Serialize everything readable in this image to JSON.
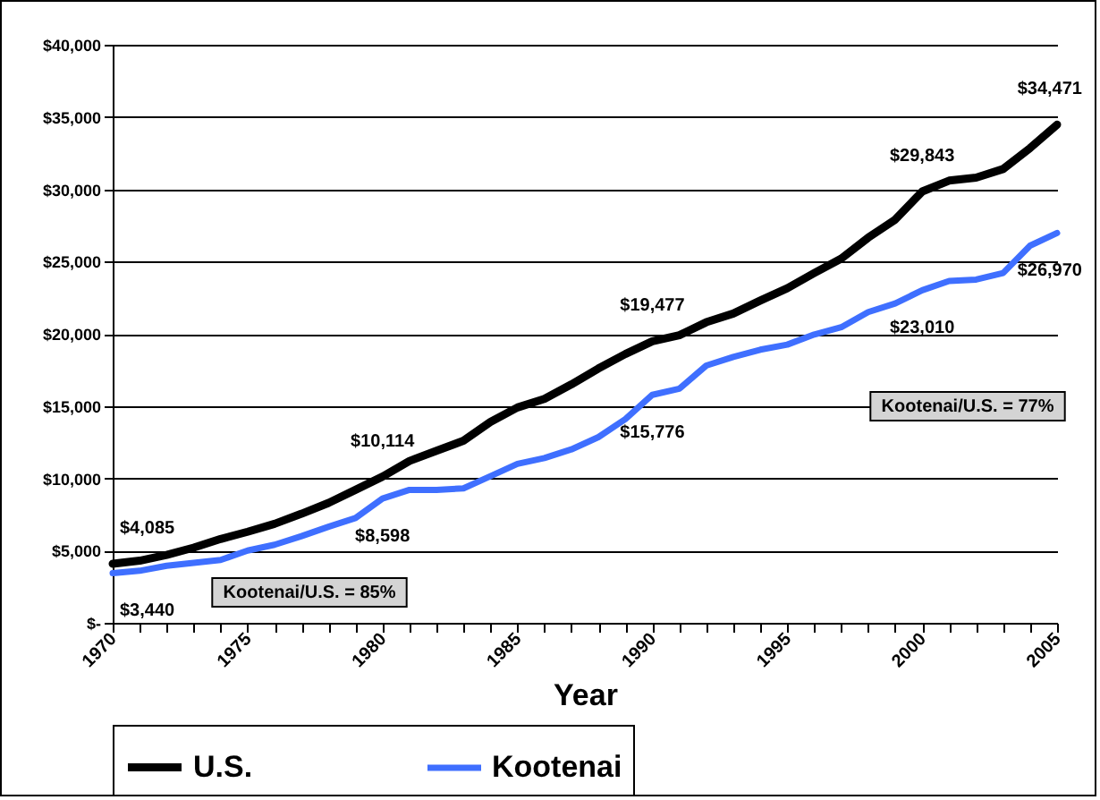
{
  "chart_data": {
    "type": "line",
    "xlabel": "Year",
    "x": [
      1970,
      1971,
      1972,
      1973,
      1974,
      1975,
      1976,
      1977,
      1978,
      1979,
      1980,
      1981,
      1982,
      1983,
      1984,
      1985,
      1986,
      1987,
      1988,
      1989,
      1990,
      1991,
      1992,
      1993,
      1994,
      1995,
      1996,
      1997,
      1998,
      1999,
      2000,
      2001,
      2002,
      2003,
      2004,
      2005
    ],
    "series": [
      {
        "name": "U.S.",
        "color": "#000000",
        "values": [
          4085,
          4300,
          4700,
          5200,
          5800,
          6300,
          6850,
          7550,
          8300,
          9200,
          10114,
          11200,
          11900,
          12600,
          13900,
          14900,
          15500,
          16500,
          17600,
          18600,
          19477,
          19900,
          20800,
          21400,
          22300,
          23150,
          24200,
          25200,
          26650,
          27900,
          29843,
          30600,
          30800,
          31400,
          32850,
          34471
        ]
      },
      {
        "name": "Kootenai",
        "color": "#3f6fff",
        "values": [
          3440,
          3600,
          3950,
          4150,
          4350,
          5000,
          5400,
          6000,
          6650,
          7250,
          8598,
          9200,
          9200,
          9300,
          10150,
          11000,
          11400,
          12000,
          12850,
          14100,
          15776,
          16200,
          17800,
          18400,
          18900,
          19250,
          19950,
          20450,
          21500,
          22100,
          23010,
          23650,
          23750,
          24200,
          26100,
          26970
        ]
      }
    ],
    "annotations": [
      {
        "text": "$4,085",
        "x": 1970,
        "y": 4085
      },
      {
        "text": "$10,114",
        "x": 1980,
        "y": 10114
      },
      {
        "text": "$19,477",
        "x": 1990,
        "y": 19477
      },
      {
        "text": "$29,843",
        "x": 2000,
        "y": 29843
      },
      {
        "text": "$34,471",
        "x": 2005,
        "y": 34471
      },
      {
        "text": "$3,440",
        "x": 1970,
        "y": 3440
      },
      {
        "text": "$8,598",
        "x": 1980,
        "y": 8598
      },
      {
        "text": "$15,776",
        "x": 1990,
        "y": 15776
      },
      {
        "text": "$23,010",
        "x": 2000,
        "y": 23010
      },
      {
        "text": "$26,970",
        "x": 2005,
        "y": 26970
      },
      "Kootenai/U.S. = 85%",
      "Kootenai/U.S. = 77%"
    ],
    "xlim": [
      1970,
      2005
    ],
    "xticks": [
      1970,
      {
        "value": 1971,
        "label": null
      },
      {
        "value": 1972,
        "label": null
      },
      {
        "value": 1973,
        "label": null
      },
      {
        "value": 1974,
        "label": null
      },
      1975,
      {
        "value": 1976,
        "label": null
      },
      {
        "value": 1977,
        "label": null
      },
      {
        "value": 1978,
        "label": null
      },
      {
        "value": 1979,
        "label": null
      },
      1980,
      {
        "value": 1981,
        "label": null
      },
      {
        "value": 1982,
        "label": null
      },
      {
        "value": 1983,
        "label": null
      },
      {
        "value": 1984,
        "label": null
      },
      1985,
      {
        "value": 1986,
        "label": null
      },
      {
        "value": 1987,
        "label": null
      },
      {
        "value": 1988,
        "label": null
      },
      {
        "value": 1989,
        "label": null
      },
      1990,
      {
        "value": 1991,
        "label": null
      },
      {
        "value": 1992,
        "label": null
      },
      {
        "value": 1993,
        "label": null
      },
      {
        "value": 1994,
        "label": null
      },
      1995,
      {
        "value": 1996,
        "label": null
      },
      {
        "value": 1997,
        "label": null
      },
      {
        "value": 1998,
        "label": null
      },
      {
        "value": 1999,
        "label": null
      },
      2000,
      {
        "value": 2001,
        "label": null
      },
      {
        "value": 2002,
        "label": null
      },
      {
        "value": 2003,
        "label": null
      },
      {
        "value": 2004,
        "label": null
      },
      2005
    ],
    "ylim": [
      0,
      40000
    ],
    "yticks": [
      {
        "value": 0,
        "label": "$-"
      },
      {
        "value": 5000,
        "label": "$5,000"
      },
      {
        "value": 10000,
        "label": "$10,000"
      },
      {
        "value": 15000,
        "label": "$15,000"
      },
      {
        "value": 20000,
        "label": "$20,000"
      },
      {
        "value": 25000,
        "label": "$25,000"
      },
      {
        "value": 30000,
        "label": "$30,000"
      },
      {
        "value": 35000,
        "label": "$35,000"
      },
      {
        "value": 40000,
        "label": "$40,000"
      }
    ],
    "grid": "y",
    "legend": "bottom",
    "line_style": "solid"
  }
}
